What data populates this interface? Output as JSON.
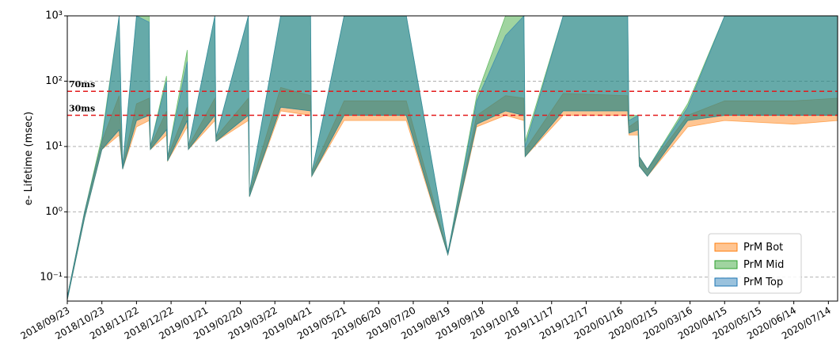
{
  "chart_data": {
    "type": "band",
    "y_label": "e- Lifetime (msec)",
    "log_y": true,
    "grid": true,
    "legend": "lower right",
    "xlim": [
      "2018/09/23",
      "2020/07/22"
    ],
    "ylim": [
      0.043,
      1000
    ],
    "yticks": [
      {
        "value": 0.1,
        "label": "10⁻¹"
      },
      {
        "value": 1,
        "label": "10⁰"
      },
      {
        "value": 10,
        "label": "10¹"
      },
      {
        "value": 100,
        "label": "10²"
      },
      {
        "value": 1000,
        "label": "10³"
      }
    ],
    "xticks": [
      "2018/09/23",
      "2018/10/23",
      "2018/11/22",
      "2018/12/22",
      "2019/01/21",
      "2019/02/20",
      "2019/03/22",
      "2019/04/21",
      "2019/05/21",
      "2019/06/20",
      "2019/07/20",
      "2019/08/19",
      "2019/09/18",
      "2019/10/18",
      "2019/11/17",
      "2019/12/17",
      "2020/01/16",
      "2020/02/15",
      "2020/03/16",
      "2020/04/15",
      "2020/05/15",
      "2020/06/14",
      "2020/07/14"
    ],
    "hlines": [
      {
        "value": 70,
        "label": "70ms",
        "color": "#e31a1c"
      },
      {
        "value": 30,
        "label": "30ms",
        "color": "#e31a1c"
      }
    ],
    "x": [
      "2018/09/23",
      "2018/10/08",
      "2018/10/23",
      "2018/11/07",
      "2018/11/10",
      "2018/11/22",
      "2018/12/03",
      "2018/12/04",
      "2018/12/18",
      "2018/12/19",
      "2019/01/05",
      "2019/01/06",
      "2019/01/29",
      "2019/01/30",
      "2019/02/27",
      "2019/02/28",
      "2019/03/27",
      "2019/04/22",
      "2019/04/23",
      "2019/05/21",
      "2019/07/14",
      "2019/08/19",
      "2019/09/13",
      "2019/10/08",
      "2019/10/24",
      "2019/10/25",
      "2019/11/27",
      "2020/01/22",
      "2020/01/23",
      "2020/01/31",
      "2020/02/01",
      "2020/02/08",
      "2020/03/14",
      "2020/04/15",
      "2020/06/14",
      "2020/07/22"
    ],
    "series": [
      {
        "name": "PrM Bot",
        "color": "#ff7f0e",
        "lower": [
          0.045,
          0.8,
          9,
          15,
          4.5,
          20,
          25,
          9,
          15,
          6,
          20,
          9,
          25,
          12,
          25,
          1.7,
          35,
          30,
          3.5,
          25,
          25,
          0.22,
          20,
          30,
          25,
          7,
          30,
          30,
          15,
          15,
          5,
          3.5,
          20,
          25,
          22,
          25
        ],
        "upper": [
          0.05,
          1,
          12,
          60,
          5,
          45,
          55,
          10,
          35,
          7,
          40,
          10,
          55,
          14,
          55,
          2,
          80,
          60,
          4,
          50,
          50,
          0.24,
          30,
          60,
          55,
          9,
          65,
          60,
          20,
          25,
          7,
          4.5,
          30,
          50,
          50,
          55
        ]
      },
      {
        "name": "PrM Mid",
        "color": "#2ca02c",
        "lower": [
          0.045,
          0.8,
          9,
          18,
          4.5,
          25,
          30,
          9,
          18,
          6,
          25,
          9,
          30,
          12,
          30,
          1.7,
          40,
          35,
          3.5,
          30,
          30,
          0.22,
          22,
          35,
          30,
          7,
          35,
          35,
          16,
          18,
          5,
          3.5,
          25,
          30,
          30,
          30
        ],
        "upper": [
          0.05,
          1,
          14,
          1000,
          5,
          1000,
          1000,
          10,
          120,
          7,
          300,
          10,
          1000,
          14,
          1000,
          2,
          1000,
          1000,
          4,
          1000,
          1000,
          0.24,
          60,
          1000,
          1000,
          12,
          1000,
          1000,
          30,
          30,
          7,
          4.5,
          45,
          1000,
          1000,
          1000
        ]
      },
      {
        "name": "PrM Top",
        "color": "#1f77b4",
        "lower": [
          0.045,
          0.8,
          9,
          18,
          4.5,
          25,
          30,
          9,
          18,
          6,
          25,
          9,
          30,
          12,
          30,
          1.7,
          40,
          35,
          3.5,
          30,
          30,
          0.22,
          22,
          35,
          30,
          7,
          35,
          35,
          16,
          18,
          5,
          3.5,
          25,
          30,
          30,
          30
        ],
        "upper": [
          0.05,
          1,
          12,
          1000,
          5,
          1000,
          800,
          10,
          100,
          7,
          200,
          10,
          1000,
          14,
          1000,
          2,
          1000,
          1000,
          4,
          1000,
          1000,
          0.24,
          50,
          500,
          1000,
          10,
          1000,
          1000,
          25,
          30,
          7,
          4.5,
          40,
          1000,
          1000,
          1000
        ]
      }
    ]
  }
}
